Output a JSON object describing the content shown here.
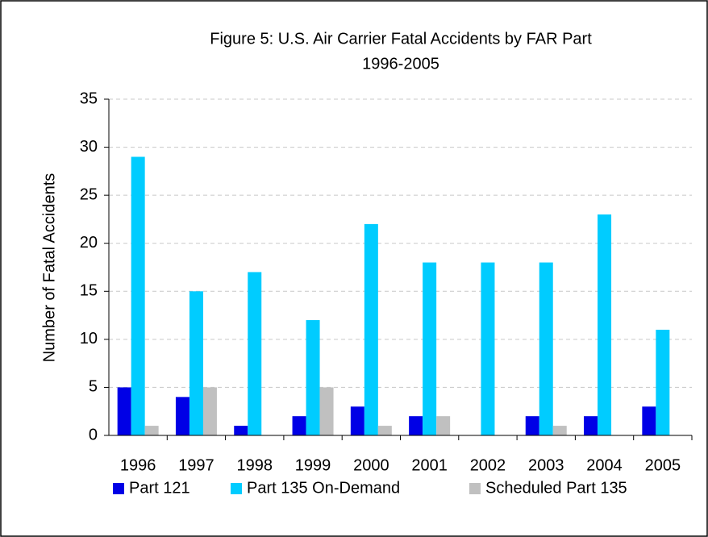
{
  "chart_data": {
    "type": "bar",
    "title": "Figure 5:  U.S. Air Carrier Fatal Accidents by FAR Part",
    "subtitle": "1996-2005",
    "y_label": "Number of Fatal Accidents",
    "categories": [
      "1996",
      "1997",
      "1998",
      "1999",
      "2000",
      "2001",
      "2002",
      "2003",
      "2004",
      "2005"
    ],
    "series": [
      {
        "name": "Part 121",
        "color": "#0000e6",
        "values": [
          5,
          4,
          1,
          2,
          3,
          2,
          0,
          2,
          2,
          3
        ]
      },
      {
        "name": "Part 135 On-Demand",
        "color": "#00ccff",
        "values": [
          29,
          15,
          17,
          12,
          22,
          18,
          18,
          18,
          23,
          11
        ]
      },
      {
        "name": "Scheduled Part 135",
        "color": "#c0c0c0",
        "values": [
          1,
          5,
          0,
          5,
          1,
          2,
          0,
          1,
          0,
          0
        ]
      }
    ],
    "ylim": [
      0,
      35
    ],
    "yticks": [
      0,
      5,
      10,
      15,
      20,
      25,
      30,
      35
    ],
    "grid": true,
    "legend": "bottom"
  }
}
